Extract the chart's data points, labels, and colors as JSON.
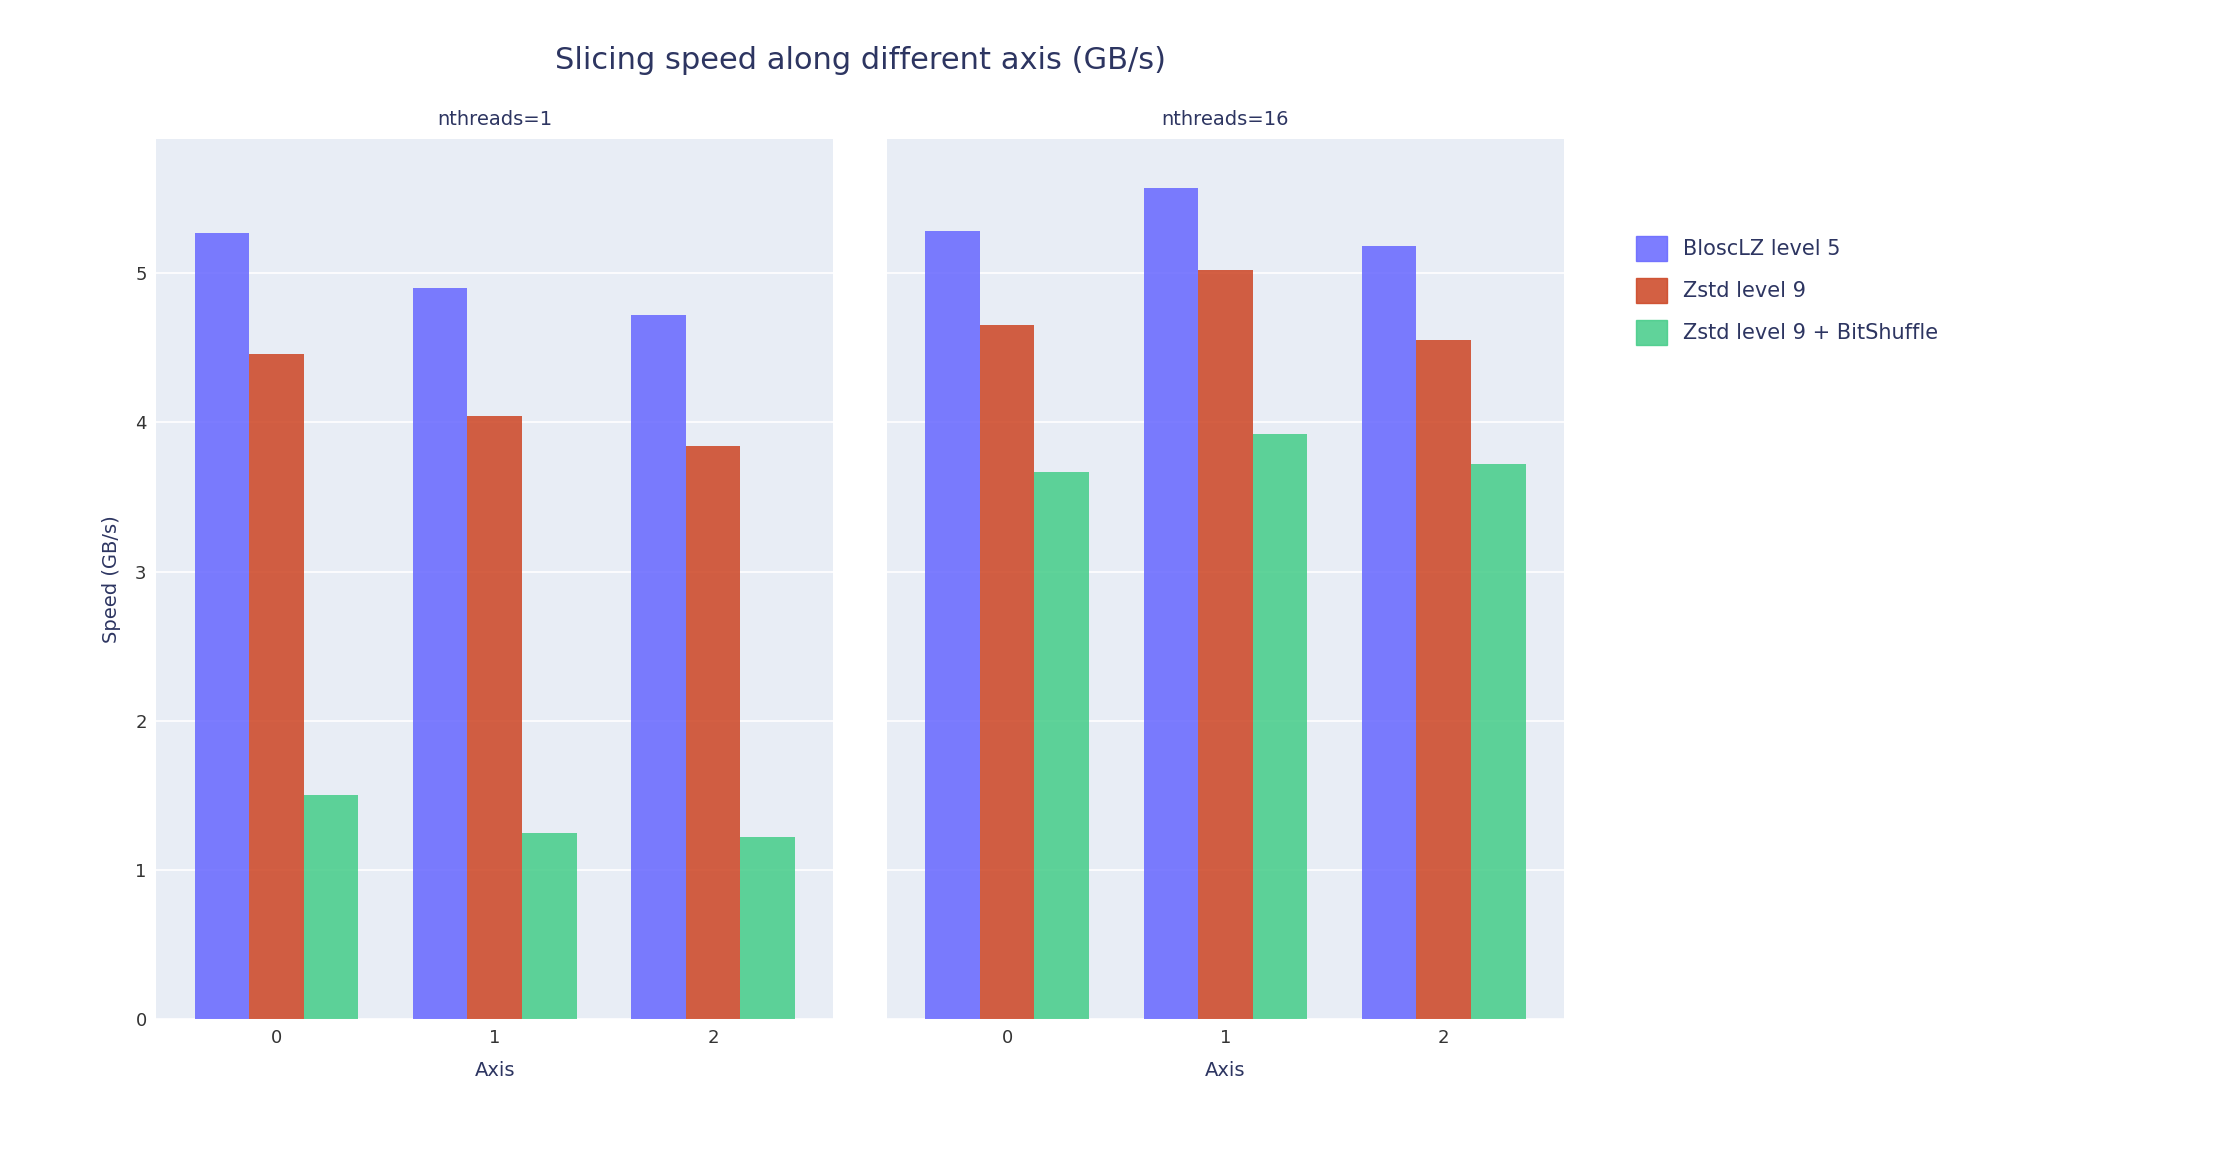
{
  "title": "Slicing speed along different axis (GB/s)",
  "subplots": [
    {
      "title": "nthreads=1",
      "xlabel": "Axis",
      "categories": [
        "0",
        "1",
        "2"
      ],
      "series": [
        {
          "label": "BloscLZ level 5",
          "values": [
            5.27,
            4.9,
            4.72
          ]
        },
        {
          "label": "Zstd level 9",
          "values": [
            4.46,
            4.04,
            3.84
          ]
        },
        {
          "label": "Zstd level 9 + BitShuffle",
          "values": [
            1.5,
            1.25,
            1.22
          ]
        }
      ]
    },
    {
      "title": "nthreads=16",
      "xlabel": "Axis",
      "categories": [
        "0",
        "1",
        "2"
      ],
      "series": [
        {
          "label": "BloscLZ level 5",
          "values": [
            5.28,
            5.57,
            5.18
          ]
        },
        {
          "label": "Zstd level 9",
          "values": [
            4.65,
            5.02,
            4.55
          ]
        },
        {
          "label": "Zstd level 9 + BitShuffle",
          "values": [
            3.67,
            3.92,
            3.72
          ]
        }
      ]
    }
  ],
  "ylabel": "Speed (GB/s)",
  "ylim": [
    0,
    5.9
  ],
  "bar_colors": [
    "#6666ff",
    "#cc4422",
    "#44cc88"
  ],
  "bar_alpha": 0.85,
  "background_color": "#e8edf5",
  "figure_background": "#ffffff",
  "title_fontsize": 22,
  "subtitle_fontsize": 14,
  "axis_label_fontsize": 14,
  "tick_fontsize": 13,
  "legend_fontsize": 15,
  "bar_width": 0.25,
  "legend_labels": [
    "BloscLZ level 5",
    "Zstd level 9",
    "Zstd level 9 + BitShuffle"
  ]
}
